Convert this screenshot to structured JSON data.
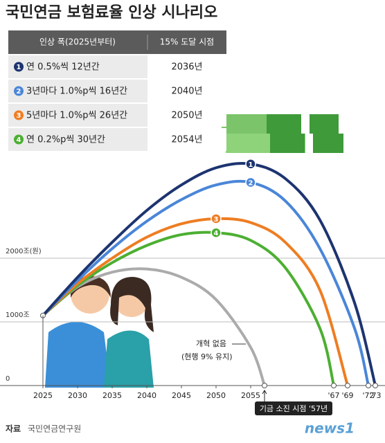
{
  "title": "국민연금 보험료율 인상 시나리오",
  "table": {
    "header": [
      "인상 폭(2025년부터)",
      "15% 도달 시점"
    ],
    "rows": [
      [
        "연 0.5%씩 12년간",
        "2036년"
      ],
      [
        "3년마다 1.0%p씩 16년간",
        "2040년"
      ],
      [
        "5년마다 1.0%p씩 26년간",
        "2050년"
      ],
      [
        "연 0.2%p씩 30년간",
        "2054년"
      ]
    ]
  },
  "chart_data": {
    "type": "line",
    "series": [
      {
        "name": "1",
        "color": "#1d3470",
        "x": [
          2025,
          2030,
          2035,
          2040,
          2045,
          2050,
          2055,
          2060,
          2065,
          2070,
          2073
        ],
        "values": [
          1100,
          1700,
          2250,
          2750,
          3150,
          3420,
          3480,
          3250,
          2600,
          1300,
          0
        ]
      },
      {
        "name": "2",
        "color": "#4a86d8",
        "x": [
          2025,
          2030,
          2035,
          2040,
          2045,
          2050,
          2055,
          2060,
          2065,
          2070,
          2072
        ],
        "values": [
          1100,
          1650,
          2150,
          2580,
          2920,
          3150,
          3190,
          2900,
          2150,
          900,
          0
        ]
      },
      {
        "name": "3",
        "color": "#ee7d22",
        "x": [
          2025,
          2030,
          2035,
          2040,
          2045,
          2050,
          2055,
          2060,
          2065,
          2069
        ],
        "values": [
          1100,
          1600,
          2000,
          2330,
          2540,
          2620,
          2560,
          2250,
          1500,
          0
        ]
      },
      {
        "name": "4",
        "color": "#4caf32",
        "x": [
          2025,
          2030,
          2035,
          2040,
          2045,
          2050,
          2055,
          2060,
          2065,
          2067
        ],
        "values": [
          1100,
          1570,
          1930,
          2200,
          2370,
          2400,
          2280,
          1850,
          900,
          0
        ]
      },
      {
        "name": "개혁 없음",
        "color": "#ababab",
        "x": [
          2025,
          2030,
          2035,
          2040,
          2045,
          2050,
          2055,
          2057
        ],
        "values": [
          1100,
          1550,
          1780,
          1830,
          1700,
          1350,
          600,
          0
        ]
      }
    ],
    "xlim": [
      2025,
      2073
    ],
    "ylim": [
      0,
      3500
    ],
    "xticks": [
      2025,
      2030,
      2035,
      2040,
      2045,
      2050,
      2055,
      {
        "value": 2067,
        "label": "'67"
      },
      {
        "value": 2069,
        "label": "'69"
      },
      {
        "value": 2072,
        "label": "'72"
      },
      {
        "value": 2073,
        "label": "'73"
      }
    ],
    "yticks": [
      0,
      {
        "value": 1000,
        "label": "1000조"
      },
      {
        "value": 2000,
        "label": "2000조(원)"
      }
    ],
    "grid": true,
    "annotations": [
      "(현행 9% 유지)",
      "기금 소진 시점 '57년"
    ]
  },
  "source": {
    "label": "자료",
    "text": "국민연금연구원"
  },
  "logo": "news1"
}
